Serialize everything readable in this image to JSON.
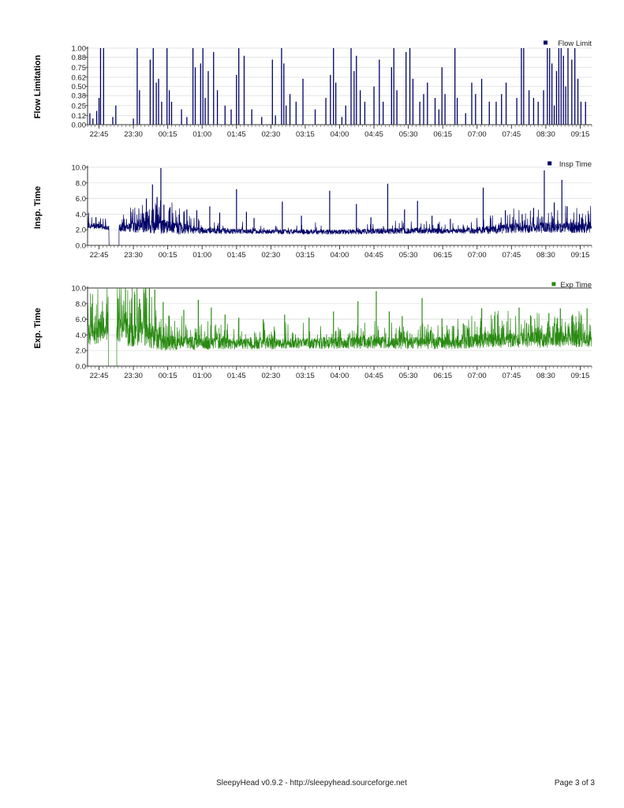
{
  "chart_data": [
    {
      "type": "bar",
      "ylabel": "Flow Limitation",
      "legend": "Flow Limit",
      "legend_position": "top-right",
      "color": "#000066",
      "ylim": [
        0,
        1.0
      ],
      "yticks": [
        "1.00",
        "0.88",
        "0.75",
        "0.62",
        "0.50",
        "0.38",
        "0.25",
        "0.12",
        "0.00"
      ],
      "xticks": [
        "22:45",
        "23:30",
        "00:15",
        "01:00",
        "01:45",
        "02:30",
        "03:15",
        "04:00",
        "04:45",
        "05:30",
        "06:15",
        "07:00",
        "07:45",
        "08:30",
        "09:15"
      ],
      "x_range": [
        "22:30",
        "09:30"
      ],
      "grid": true,
      "events": [
        [
          "22:33",
          0.15
        ],
        [
          "22:37",
          0.08
        ],
        [
          "22:42",
          0.18
        ],
        [
          "22:45",
          0.35
        ],
        [
          "22:47",
          1.0
        ],
        [
          "22:51",
          1.0
        ],
        [
          "23:03",
          0.1
        ],
        [
          "23:07",
          0.25
        ],
        [
          "23:30",
          0.08
        ],
        [
          "23:35",
          1.0
        ],
        [
          "23:38",
          0.45
        ],
        [
          "23:52",
          0.85
        ],
        [
          "23:56",
          1.0
        ],
        [
          "00:00",
          0.55
        ],
        [
          "00:03",
          0.6
        ],
        [
          "00:07",
          0.3
        ],
        [
          "00:14",
          1.0
        ],
        [
          "00:17",
          0.45
        ],
        [
          "00:20",
          0.3
        ],
        [
          "00:33",
          0.2
        ],
        [
          "00:40",
          0.1
        ],
        [
          "00:48",
          1.0
        ],
        [
          "00:51",
          0.75
        ],
        [
          "00:58",
          0.8
        ],
        [
          "01:01",
          1.0
        ],
        [
          "01:04",
          0.35
        ],
        [
          "01:08",
          0.7
        ],
        [
          "01:15",
          0.95
        ],
        [
          "01:20",
          0.45
        ],
        [
          "01:30",
          0.25
        ],
        [
          "01:38",
          0.2
        ],
        [
          "01:45",
          0.65
        ],
        [
          "01:48",
          1.0
        ],
        [
          "01:55",
          0.9
        ],
        [
          "02:05",
          0.2
        ],
        [
          "02:18",
          0.1
        ],
        [
          "02:32",
          0.85
        ],
        [
          "02:36",
          0.12
        ],
        [
          "02:44",
          1.0
        ],
        [
          "02:47",
          0.8
        ],
        [
          "02:50",
          0.25
        ],
        [
          "02:55",
          0.4
        ],
        [
          "03:03",
          0.3
        ],
        [
          "03:12",
          0.6
        ],
        [
          "03:28",
          0.2
        ],
        [
          "03:42",
          0.35
        ],
        [
          "03:48",
          0.65
        ],
        [
          "03:52",
          1.0
        ],
        [
          "03:55",
          0.55
        ],
        [
          "04:03",
          0.1
        ],
        [
          "04:08",
          0.25
        ],
        [
          "04:15",
          1.0
        ],
        [
          "04:19",
          0.7
        ],
        [
          "04:22",
          0.9
        ],
        [
          "04:27",
          0.45
        ],
        [
          "04:33",
          0.3
        ],
        [
          "04:45",
          0.5
        ],
        [
          "04:52",
          0.85
        ],
        [
          "04:57",
          0.3
        ],
        [
          "05:08",
          0.75
        ],
        [
          "05:11",
          1.0
        ],
        [
          "05:15",
          0.45
        ],
        [
          "05:27",
          0.95
        ],
        [
          "05:32",
          1.0
        ],
        [
          "05:36",
          0.6
        ],
        [
          "05:45",
          0.3
        ],
        [
          "05:50",
          0.4
        ],
        [
          "05:55",
          0.55
        ],
        [
          "06:05",
          0.35
        ],
        [
          "06:10",
          0.2
        ],
        [
          "06:14",
          0.75
        ],
        [
          "06:18",
          0.4
        ],
        [
          "06:31",
          1.0
        ],
        [
          "06:34",
          0.35
        ],
        [
          "06:45",
          0.15
        ],
        [
          "06:53",
          0.55
        ],
        [
          "06:58",
          0.4
        ],
        [
          "07:06",
          0.6
        ],
        [
          "07:16",
          0.3
        ],
        [
          "07:25",
          0.3
        ],
        [
          "07:32",
          0.4
        ],
        [
          "07:38",
          0.55
        ],
        [
          "07:52",
          0.35
        ],
        [
          "07:58",
          1.0
        ],
        [
          "08:01",
          1.0
        ],
        [
          "08:08",
          0.45
        ],
        [
          "08:14",
          0.35
        ],
        [
          "08:20",
          0.3
        ],
        [
          "08:27",
          0.45
        ],
        [
          "08:32",
          1.0
        ],
        [
          "08:35",
          1.0
        ],
        [
          "08:38",
          0.8
        ],
        [
          "08:41",
          0.25
        ],
        [
          "08:44",
          0.7
        ],
        [
          "08:47",
          1.0
        ],
        [
          "08:50",
          1.0
        ],
        [
          "08:53",
          0.9
        ],
        [
          "08:56",
          0.5
        ],
        [
          "08:59",
          1.0
        ],
        [
          "09:04",
          0.85
        ],
        [
          "09:08",
          1.0
        ],
        [
          "09:12",
          0.6
        ],
        [
          "09:16",
          0.3
        ],
        [
          "09:22",
          0.3
        ]
      ]
    },
    {
      "type": "line",
      "ylabel": "Insp. Time",
      "legend": "Insp Time",
      "legend_position": "top-right",
      "color": "#000066",
      "ylim": [
        0,
        10.0
      ],
      "yticks": [
        "10.0",
        "8.0",
        "6.0",
        "4.0",
        "2.0",
        "0.0"
      ],
      "xticks": [
        "22:45",
        "23:30",
        "00:15",
        "01:00",
        "01:45",
        "02:30",
        "03:15",
        "04:00",
        "04:45",
        "05:30",
        "06:15",
        "07:00",
        "07:45",
        "08:30",
        "09:15"
      ],
      "x_range": [
        "22:30",
        "09:30"
      ],
      "grid": true,
      "gaps": [
        [
          "22:58",
          "23:11"
        ]
      ],
      "segments": [
        [
          "22:30",
          2.6,
          0.4,
          0.12
        ],
        [
          "22:58",
          2.3,
          0.3,
          0.1
        ],
        [
          "23:11",
          2.3,
          0.5,
          0.12
        ],
        [
          "23:45",
          2.5,
          1.0,
          0.3
        ],
        [
          "00:30",
          2.2,
          0.8,
          0.2
        ],
        [
          "01:00",
          1.9,
          0.4,
          0.1
        ],
        [
          "02:00",
          1.8,
          0.3,
          0.06
        ],
        [
          "04:00",
          1.7,
          0.3,
          0.06
        ],
        [
          "05:30",
          1.9,
          0.4,
          0.08
        ],
        [
          "06:30",
          1.8,
          0.3,
          0.06
        ],
        [
          "07:15",
          2.0,
          0.5,
          0.12
        ],
        [
          "08:00",
          2.3,
          0.7,
          0.16
        ],
        [
          "09:30",
          2.3,
          0.7,
          0.16
        ]
      ],
      "spikes": [
        [
          "22:41",
          3.6
        ],
        [
          "23:37",
          3.2
        ],
        [
          "23:47",
          6.0
        ],
        [
          "23:55",
          7.8
        ],
        [
          "00:01",
          6.2
        ],
        [
          "00:06",
          9.9
        ],
        [
          "00:10",
          5.2
        ],
        [
          "00:18",
          4.9
        ],
        [
          "00:40",
          4.6
        ],
        [
          "00:53",
          4.5
        ],
        [
          "01:10",
          5.0
        ],
        [
          "01:23",
          4.2
        ],
        [
          "01:45",
          7.2
        ],
        [
          "01:58",
          4.3
        ],
        [
          "02:08",
          3.5
        ],
        [
          "02:45",
          5.6
        ],
        [
          "03:10",
          3.8
        ],
        [
          "03:47",
          7.0
        ],
        [
          "04:22",
          5.3
        ],
        [
          "04:41",
          3.6
        ],
        [
          "05:03",
          7.9
        ],
        [
          "05:25",
          4.6
        ],
        [
          "05:42",
          5.7
        ],
        [
          "06:01",
          3.8
        ],
        [
          "06:25",
          3.4
        ],
        [
          "07:08",
          7.4
        ],
        [
          "07:37",
          4.5
        ],
        [
          "07:59",
          4.0
        ],
        [
          "08:14",
          4.8
        ],
        [
          "08:28",
          9.6
        ],
        [
          "08:41",
          5.5
        ],
        [
          "08:51",
          8.4
        ],
        [
          "08:58",
          5.0
        ],
        [
          "09:14",
          4.0
        ]
      ]
    },
    {
      "type": "line",
      "ylabel": "Exp. Time",
      "legend": "Exp Time",
      "legend_position": "top-right",
      "color": "#2a8a12",
      "ylim": [
        0,
        10.0
      ],
      "yticks": [
        "10.0",
        "8.0",
        "6.0",
        "4.0",
        "2.0",
        "0.0"
      ],
      "xticks": [
        "22:45",
        "23:30",
        "00:15",
        "01:00",
        "01:45",
        "02:30",
        "03:15",
        "04:00",
        "04:45",
        "05:30",
        "06:15",
        "07:00",
        "07:45",
        "08:30",
        "09:15"
      ],
      "x_range": [
        "22:30",
        "09:30"
      ],
      "grid": true,
      "gaps": [
        [
          "22:57",
          "23:08"
        ]
      ],
      "segments": [
        [
          "22:30",
          4.2,
          1.6,
          0.25
        ],
        [
          "22:57",
          4.6,
          1.4,
          0.2
        ],
        [
          "23:08",
          4.3,
          1.8,
          0.3
        ],
        [
          "23:45",
          4.5,
          2.0,
          0.35
        ],
        [
          "00:05",
          3.0,
          1.0,
          0.25
        ],
        [
          "01:00",
          2.9,
          0.8,
          0.2
        ],
        [
          "03:00",
          2.9,
          0.7,
          0.15
        ],
        [
          "05:00",
          3.0,
          0.8,
          0.18
        ],
        [
          "06:30",
          3.0,
          0.8,
          0.18
        ],
        [
          "07:15",
          3.3,
          1.0,
          0.22
        ],
        [
          "09:30",
          3.4,
          1.0,
          0.22
        ]
      ],
      "spikes": [
        [
          "22:36",
          8.0
        ],
        [
          "22:50",
          7.0
        ],
        [
          "23:20",
          6.8
        ],
        [
          "23:38",
          8.6
        ],
        [
          "23:46",
          8.9
        ],
        [
          "23:51",
          10.0
        ],
        [
          "23:58",
          9.8
        ],
        [
          "00:09",
          8.2
        ],
        [
          "00:17",
          6.4
        ],
        [
          "00:36",
          7.2
        ],
        [
          "00:55",
          8.5
        ],
        [
          "01:12",
          7.5
        ],
        [
          "01:30",
          6.6
        ],
        [
          "01:48",
          6.2
        ],
        [
          "02:20",
          6.0
        ],
        [
          "02:48",
          6.6
        ],
        [
          "03:20",
          6.2
        ],
        [
          "03:52",
          7.0
        ],
        [
          "04:24",
          8.3
        ],
        [
          "04:48",
          9.6
        ],
        [
          "05:05",
          7.0
        ],
        [
          "05:22",
          6.4
        ],
        [
          "05:48",
          8.7
        ],
        [
          "06:14",
          6.1
        ],
        [
          "07:06",
          7.4
        ],
        [
          "07:23",
          6.5
        ],
        [
          "07:55",
          7.5
        ],
        [
          "08:10",
          6.5
        ],
        [
          "08:34",
          6.8
        ],
        [
          "08:49",
          7.4
        ],
        [
          "09:05",
          6.6
        ],
        [
          "09:24",
          7.4
        ]
      ]
    }
  ],
  "footer": {
    "center": "SleepyHead v0.9.2 - http://sleepyhead.sourceforge.net",
    "right": "Page 3 of 3"
  }
}
